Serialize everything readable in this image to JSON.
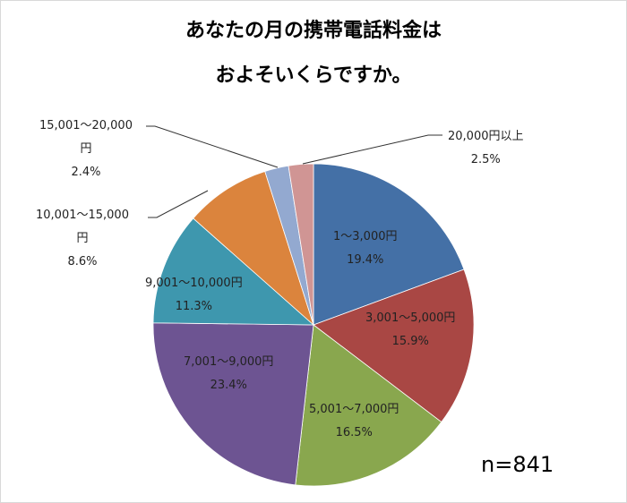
{
  "chart_data": {
    "type": "pie",
    "title": "あなたの月の携帯電話料金は およそいくらですか。",
    "title_lines": [
      "あなたの月の携帯電話料金は",
      "およそいくらですか。"
    ],
    "categories": [
      "1～3,000円",
      "3,001～5,000円",
      "5,001～7,000円",
      "7,001～9,000円",
      "9,001～10,000円",
      "10,001～15,000円",
      "15,001～20,000円",
      "20,000円以上"
    ],
    "values": [
      19.4,
      15.9,
      16.5,
      23.4,
      11.3,
      8.6,
      2.4,
      2.5
    ],
    "unit": "%",
    "colors": [
      "#4470a6",
      "#a94744",
      "#89a74e",
      "#6d5492",
      "#3e97ae",
      "#db843d",
      "#93a9d0",
      "#d09594"
    ],
    "start_angle": "12 o'clock",
    "direction": "clockwise",
    "annotation": "n=841",
    "labels": [
      {
        "name": "1～3,000円",
        "pct": "19.4%"
      },
      {
        "name": "3,001～5,000円",
        "pct": "15.9%"
      },
      {
        "name": "5,001～7,000円",
        "pct": "16.5%"
      },
      {
        "name": "7,001～9,000円",
        "pct": "23.4%"
      },
      {
        "name": "9,001～10,000円",
        "pct": "11.3%"
      },
      {
        "name_l1": "10,001～15,000",
        "name_l2": "円",
        "pct": "8.6%"
      },
      {
        "name_l1": "15,001～20,000",
        "name_l2": "円",
        "pct": "2.4%"
      },
      {
        "name": "20,000円以上",
        "pct": "2.5%"
      }
    ]
  }
}
